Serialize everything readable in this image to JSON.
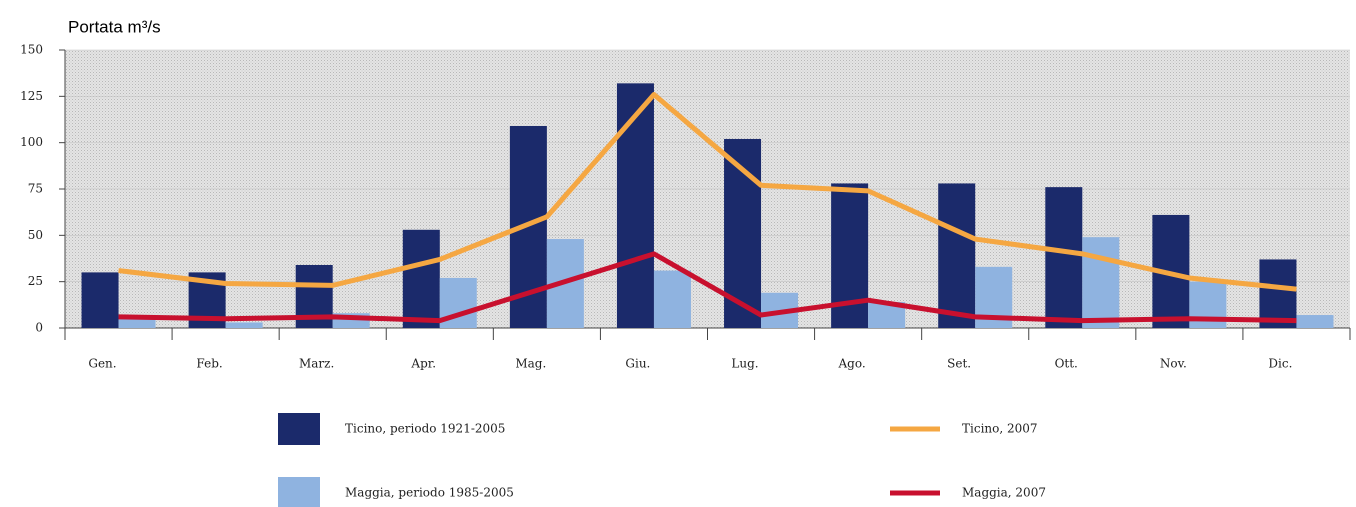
{
  "chart_data": {
    "type": "bar_line",
    "title": "Portata m³/s",
    "categories": [
      "Gen.",
      "Feb.",
      "Marz.",
      "Apr.",
      "Mag.",
      "Giu.",
      "Lug.",
      "Ago.",
      "Set.",
      "Ott.",
      "Nov.",
      "Dic."
    ],
    "series": [
      {
        "name": "Ticino, periodo 1921-2005",
        "kind": "bar",
        "color": "#1b2a6b",
        "values": [
          30,
          30,
          34,
          53,
          109,
          132,
          102,
          78,
          78,
          76,
          61,
          37
        ]
      },
      {
        "name": "Maggia, periodo 1985-2005",
        "kind": "bar",
        "color": "#8fb3e0",
        "values": [
          5,
          3,
          8,
          27,
          48,
          31,
          19,
          14,
          33,
          49,
          25,
          7
        ]
      },
      {
        "name": "Ticino, 2007",
        "kind": "line",
        "color": "#f5a742",
        "values": [
          31,
          24,
          23,
          37,
          60,
          126,
          77,
          74,
          48,
          40,
          27,
          21
        ]
      },
      {
        "name": "Maggia, 2007",
        "kind": "line",
        "color": "#c8102e",
        "values": [
          6,
          5,
          6,
          4,
          22,
          40,
          7,
          15,
          6,
          4,
          5,
          4
        ]
      }
    ],
    "ylim": [
      0,
      150
    ],
    "yticks": [
      0,
      25,
      50,
      75,
      100,
      125,
      150
    ],
    "grid": true
  }
}
